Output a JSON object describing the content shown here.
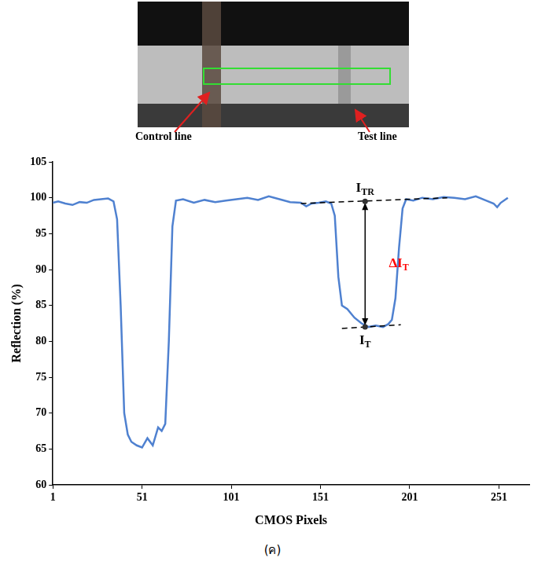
{
  "chart_data": {
    "type": "line",
    "x": [
      1,
      4,
      8,
      12,
      16,
      20,
      24,
      28,
      32,
      35,
      37,
      39,
      41,
      43,
      45,
      48,
      51,
      54,
      57,
      60,
      62,
      64,
      66,
      68,
      70,
      74,
      80,
      86,
      92,
      98,
      104,
      110,
      116,
      122,
      128,
      134,
      140,
      143,
      146,
      150,
      154,
      157,
      159,
      161,
      163,
      166,
      170,
      174,
      178,
      182,
      186,
      189,
      191,
      193,
      195,
      197,
      199,
      203,
      208,
      214,
      220,
      226,
      232,
      238,
      244,
      248,
      250,
      252,
      256
    ],
    "values": [
      99.3,
      99.5,
      99.2,
      99.0,
      99.4,
      99.3,
      99.7,
      99.8,
      99.9,
      99.5,
      97,
      85,
      70,
      67,
      66,
      65.5,
      65.2,
      66.5,
      65.5,
      68,
      67.5,
      68.5,
      80,
      96,
      99.6,
      99.8,
      99.3,
      99.7,
      99.4,
      99.6,
      99.8,
      100,
      99.7,
      100.2,
      99.8,
      99.4,
      99.3,
      98.8,
      99.2,
      99.3,
      99.5,
      99.2,
      97.5,
      89,
      85,
      84.5,
      83.3,
      82.5,
      82,
      82.2,
      82,
      82.4,
      83,
      86,
      93,
      98.5,
      99.8,
      99.6,
      100,
      99.8,
      100.1,
      100,
      99.8,
      100.2,
      99.6,
      99.2,
      98.7,
      99.3,
      100
    ],
    "color": "#4f81d0",
    "xlabel": "CMOS Pixels",
    "ylabel": "Reflection (%)",
    "xlim": [
      1,
      268
    ],
    "xticks": [
      1,
      51,
      101,
      151,
      201,
      251
    ],
    "ylim": [
      60,
      105
    ],
    "yticks": [
      60,
      65,
      70,
      75,
      80,
      85,
      90,
      95,
      100,
      105
    ],
    "grid": false,
    "reference_lines": [
      {
        "x": [
          140,
          222
        ],
        "y": [
          99.2,
          100
        ]
      },
      {
        "x": [
          163,
          196
        ],
        "y": [
          81.8,
          82.3
        ]
      }
    ],
    "arrow": {
      "x": 176,
      "from": 99.5,
      "to": 82
    },
    "annotations": [
      {
        "text": "I",
        "sub": "TR",
        "x": 176,
        "y": 99.5,
        "color": "#000000",
        "position": "above",
        "marker": "circle"
      },
      {
        "text": "ΔI",
        "sub": "T",
        "x": 184,
        "y": 91,
        "color": "#ff0000",
        "position": "right"
      },
      {
        "text": "I",
        "sub": "T",
        "x": 176,
        "y": 82,
        "color": "#000000",
        "position": "below",
        "marker": "circle"
      }
    ]
  },
  "image": {
    "labels": [
      "Control line",
      "Test line"
    ]
  },
  "caption": "(ค)"
}
